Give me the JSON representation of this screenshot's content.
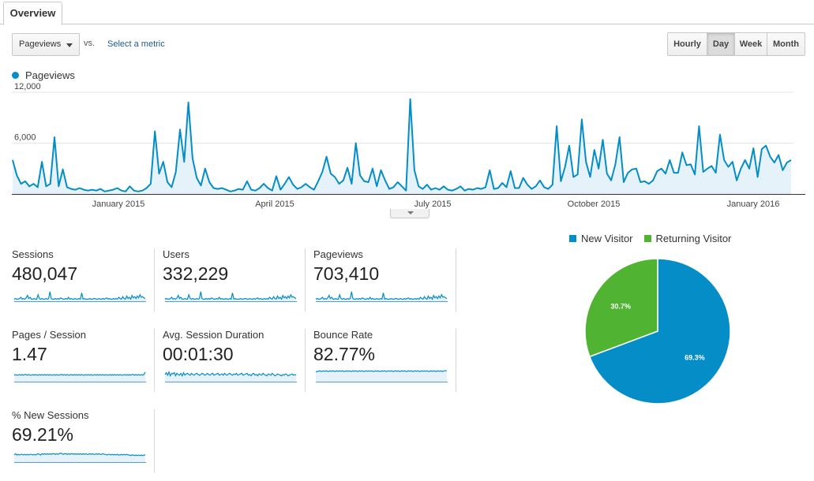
{
  "tabs": {
    "overview_label": "Overview"
  },
  "controls": {
    "metric_selected": "Pageviews",
    "vs_label": "vs.",
    "select_metric_label": "Select a metric",
    "granularity": [
      {
        "label": "Hourly",
        "active": false
      },
      {
        "label": "Day",
        "active": true
      },
      {
        "label": "Week",
        "active": false
      },
      {
        "label": "Month",
        "active": false
      }
    ]
  },
  "colors": {
    "series": "#058dc7",
    "new_visitor": "#058dc7",
    "returning_visitor": "#50b432",
    "fill": "#e6f2f9"
  },
  "chart_data": [
    {
      "type": "area",
      "series": [
        {
          "name": "Pageviews",
          "values": [
            4000,
            2200,
            1200,
            1500,
            900,
            1200,
            800,
            3800,
            900,
            1200,
            6700,
            900,
            2900,
            800,
            600,
            500,
            700,
            500,
            400,
            500,
            400,
            600,
            300,
            400,
            500,
            700,
            400,
            300,
            900,
            400,
            300,
            400,
            700,
            1200,
            7400,
            2400,
            3800,
            1400,
            800,
            2600,
            7600,
            3800,
            10800,
            4200,
            1900,
            1000,
            3000,
            1400,
            700,
            600,
            700,
            500,
            300,
            400,
            600,
            500,
            1500,
            500,
            400,
            700,
            1200,
            700,
            400,
            2100,
            500,
            1200,
            2000,
            1100,
            600,
            800,
            1200,
            800,
            500,
            1500,
            2600,
            4400,
            2400,
            2000,
            1200,
            1600,
            3100,
            1200,
            6000,
            2200,
            1500,
            1400,
            3000,
            900,
            2800,
            1600,
            600,
            800,
            1400,
            900,
            400,
            11200,
            2800,
            900,
            600,
            1100,
            500,
            700,
            500,
            900,
            500,
            400,
            600,
            900,
            400,
            600,
            500,
            700,
            600,
            800,
            2800,
            600,
            700,
            1300,
            800,
            2700,
            700,
            700,
            1900,
            1100,
            600,
            900,
            1600,
            800,
            600,
            1100,
            8000,
            1500,
            3200,
            5700,
            2000,
            2300,
            8800,
            3800,
            2000,
            5200,
            3000,
            6400,
            2400,
            1600,
            3500,
            6700,
            1400,
            2500,
            2900,
            3000,
            1400,
            1500,
            1200,
            1600,
            2700,
            3000,
            2400,
            4000,
            2500,
            2500,
            4900,
            3400,
            3500,
            2300,
            8000,
            2600,
            3000,
            3300,
            2500,
            7000,
            4000,
            3200,
            3800,
            1600,
            3000,
            4000,
            3000,
            5400,
            2000,
            5300,
            5700,
            4400,
            3700,
            4600,
            2800,
            3700,
            4000
          ]
        }
      ],
      "x_tick_labels": [
        "January 2015",
        "April 2015",
        "July 2015",
        "October 2015",
        "January 2016"
      ],
      "y_tick_labels": [
        "12,000",
        "6,000"
      ],
      "ylim": [
        0,
        12000
      ],
      "grid": true
    },
    {
      "type": "pie",
      "series": [
        {
          "name": "New Visitor",
          "value": 69.3,
          "label": "69.3%"
        },
        {
          "name": "Returning Visitor",
          "value": 30.7,
          "label": "30.7%"
        }
      ],
      "legend": "top"
    }
  ],
  "metrics": [
    {
      "label": "Sessions",
      "value": "480,047",
      "spark": [
        2,
        3,
        2,
        2,
        3,
        5,
        2,
        3,
        2,
        4,
        8,
        3,
        5,
        2,
        2,
        3,
        2,
        2,
        9,
        3,
        2,
        3,
        2,
        2,
        3,
        2,
        3,
        14,
        3,
        2,
        2,
        3,
        2,
        3,
        2,
        4,
        3,
        2,
        2,
        3,
        2,
        5,
        2,
        3,
        2,
        2,
        3,
        2,
        2,
        3,
        2,
        12,
        2,
        3,
        2,
        2,
        2,
        3,
        2,
        2,
        3,
        3,
        2,
        2,
        3,
        2,
        2,
        3,
        2,
        3,
        4,
        2,
        3,
        2,
        2,
        3,
        2,
        3,
        2,
        5,
        3,
        2,
        6,
        3,
        2,
        7,
        3,
        5,
        2,
        8,
        4,
        6,
        3,
        7,
        4,
        9,
        5,
        6,
        4,
        3
      ]
    },
    {
      "label": "Users",
      "value": "332,229",
      "spark": [
        2,
        3,
        2,
        2,
        3,
        5,
        2,
        3,
        2,
        4,
        8,
        3,
        5,
        2,
        2,
        3,
        2,
        2,
        9,
        3,
        2,
        3,
        2,
        2,
        3,
        2,
        3,
        14,
        3,
        2,
        2,
        3,
        2,
        3,
        2,
        4,
        3,
        2,
        2,
        3,
        2,
        5,
        2,
        3,
        2,
        2,
        3,
        2,
        2,
        3,
        2,
        12,
        2,
        3,
        2,
        2,
        2,
        3,
        2,
        2,
        3,
        3,
        2,
        2,
        3,
        2,
        2,
        3,
        2,
        3,
        4,
        2,
        3,
        2,
        2,
        3,
        2,
        3,
        2,
        5,
        3,
        2,
        6,
        3,
        2,
        7,
        3,
        5,
        2,
        8,
        4,
        6,
        3,
        7,
        4,
        9,
        5,
        6,
        4,
        3
      ]
    },
    {
      "label": "Pageviews",
      "value": "703,410",
      "spark": [
        2,
        3,
        2,
        2,
        3,
        5,
        2,
        3,
        2,
        4,
        8,
        3,
        5,
        2,
        2,
        3,
        2,
        2,
        9,
        3,
        2,
        3,
        2,
        2,
        3,
        2,
        3,
        14,
        3,
        2,
        2,
        3,
        2,
        3,
        2,
        4,
        3,
        2,
        2,
        3,
        2,
        5,
        2,
        3,
        2,
        2,
        3,
        2,
        2,
        3,
        2,
        12,
        2,
        3,
        2,
        2,
        2,
        3,
        2,
        2,
        3,
        3,
        2,
        2,
        3,
        2,
        2,
        3,
        2,
        3,
        4,
        2,
        3,
        2,
        2,
        3,
        2,
        3,
        2,
        5,
        3,
        2,
        6,
        3,
        2,
        7,
        3,
        5,
        2,
        8,
        4,
        6,
        3,
        7,
        4,
        9,
        5,
        6,
        4,
        3
      ]
    },
    {
      "label": "Pages / Session",
      "value": "1.47",
      "spark": [
        9,
        10,
        9,
        9,
        10,
        9,
        10,
        9,
        10,
        10,
        9,
        10,
        9,
        9,
        10,
        9,
        10,
        9,
        9,
        10,
        9,
        10,
        9,
        10,
        9,
        10,
        9,
        10,
        9,
        9,
        10,
        9,
        10,
        9,
        9,
        10,
        10,
        9,
        10,
        9,
        10,
        9,
        9,
        10,
        9,
        10,
        9,
        10,
        9,
        10,
        9,
        10,
        9,
        9,
        10,
        9,
        10,
        9,
        10,
        9,
        9,
        10,
        9,
        10,
        9,
        10,
        9,
        10,
        9,
        10,
        9,
        9,
        10,
        9,
        10,
        9,
        10,
        9,
        10,
        9,
        10,
        9,
        9,
        10,
        9,
        10,
        9,
        10,
        9,
        10,
        10,
        9,
        10,
        9,
        10,
        9,
        10,
        9,
        10,
        14
      ]
    },
    {
      "label": "Avg. Session Duration",
      "value": "00:01:30",
      "spark": [
        10,
        13,
        9,
        14,
        8,
        12,
        11,
        13,
        8,
        12,
        10,
        9,
        12,
        8,
        13,
        9,
        11,
        12,
        10,
        9,
        12,
        10,
        9,
        11,
        12,
        10,
        9,
        10,
        12,
        11,
        9,
        10,
        12,
        10,
        9,
        11,
        12,
        9,
        10,
        11,
        12,
        9,
        10,
        11,
        9,
        12,
        10,
        9,
        11,
        12,
        10,
        9,
        11,
        10,
        12,
        9,
        10,
        11,
        12,
        9,
        10,
        11,
        12,
        9,
        10,
        8,
        11,
        12,
        9,
        10,
        8,
        11,
        10,
        9,
        12,
        10,
        9,
        8,
        11,
        10,
        9,
        12,
        10,
        8,
        9,
        11,
        10,
        9,
        8,
        10,
        9,
        11,
        10,
        8,
        9,
        10,
        11,
        9,
        10,
        9
      ]
    },
    {
      "label": "Bounce Rate",
      "value": "82.77%",
      "spark": [
        14,
        15,
        15,
        16,
        15,
        15,
        16,
        15,
        16,
        15,
        15,
        16,
        15,
        16,
        15,
        15,
        16,
        15,
        16,
        15,
        16,
        15,
        15,
        16,
        15,
        16,
        15,
        15,
        16,
        15,
        16,
        15,
        15,
        16,
        15,
        16,
        15,
        15,
        16,
        15,
        16,
        15,
        16,
        15,
        15,
        16,
        15,
        16,
        15,
        15,
        16,
        15,
        16,
        15,
        15,
        16,
        15,
        16,
        15,
        15,
        16,
        15,
        16,
        15,
        15,
        16,
        15,
        16,
        15,
        15,
        16,
        15,
        16,
        15,
        15,
        16,
        15,
        16,
        15,
        15,
        16,
        15,
        16,
        15,
        16,
        15,
        15,
        16,
        15,
        16,
        15,
        15,
        16,
        15,
        16,
        15,
        15,
        16,
        16,
        16
      ]
    },
    {
      "label": "% New Sessions",
      "value": "69.21%",
      "spark": [
        10,
        12,
        10,
        11,
        10,
        11,
        11,
        10,
        11,
        10,
        11,
        10,
        11,
        11,
        10,
        11,
        10,
        11,
        12,
        11,
        10,
        12,
        11,
        12,
        11,
        12,
        11,
        12,
        11,
        12,
        12,
        11,
        12,
        11,
        12,
        13,
        12,
        11,
        12,
        12,
        11,
        12,
        11,
        12,
        12,
        11,
        12,
        11,
        12,
        11,
        12,
        11,
        12,
        11,
        12,
        11,
        11,
        12,
        11,
        12,
        11,
        11,
        12,
        11,
        12,
        11,
        11,
        12,
        11,
        11,
        10,
        11,
        11,
        10,
        11,
        10,
        11,
        10,
        11,
        10,
        10,
        11,
        10,
        11,
        10,
        11,
        10,
        10,
        9,
        10,
        10,
        9,
        10,
        9,
        10,
        9,
        10,
        9,
        10,
        10
      ]
    }
  ]
}
